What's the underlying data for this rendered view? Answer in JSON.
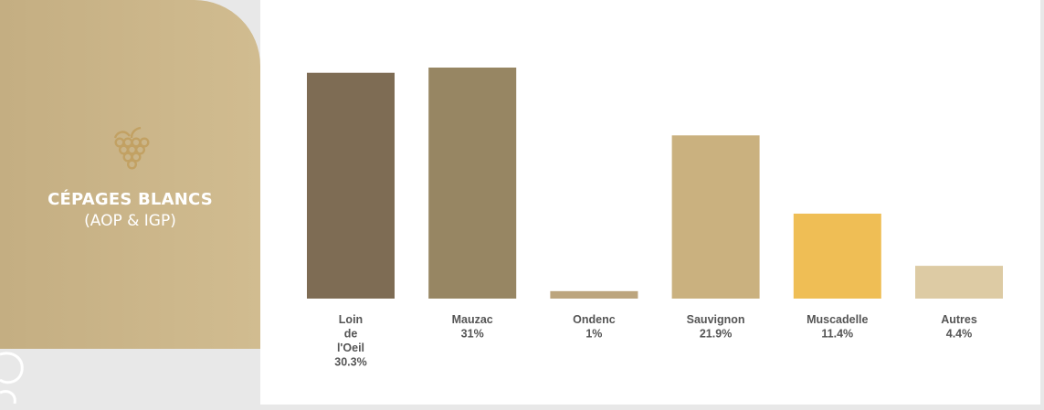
{
  "panel": {
    "title": "CÉPAGES BLANCS",
    "subtitle": "(AOP & IGP)",
    "icon": "grape-icon",
    "background": "#cdb88c"
  },
  "chart_data": {
    "type": "bar",
    "categories": [
      "Loin de l'Oeil",
      "Mauzac",
      "Ondenc",
      "Sauvignon",
      "Muscadelle",
      "Autres"
    ],
    "label_lines": [
      [
        "Loin",
        "de",
        "l'Oeil",
        "30.3%"
      ],
      [
        "Mauzac",
        "31%"
      ],
      [
        "Ondenc",
        "1%"
      ],
      [
        "Sauvignon",
        "21.9%"
      ],
      [
        "Muscadelle",
        "11.4%"
      ],
      [
        "Autres",
        "4.4%"
      ]
    ],
    "values": [
      30.3,
      31,
      1,
      21.9,
      11.4,
      4.4
    ],
    "colors": [
      "#7e6c54",
      "#978663",
      "#bca57e",
      "#cab17f",
      "#efbe55",
      "#ddcba4"
    ],
    "ylim": [
      0,
      31
    ],
    "grid": false,
    "legend": "none"
  }
}
